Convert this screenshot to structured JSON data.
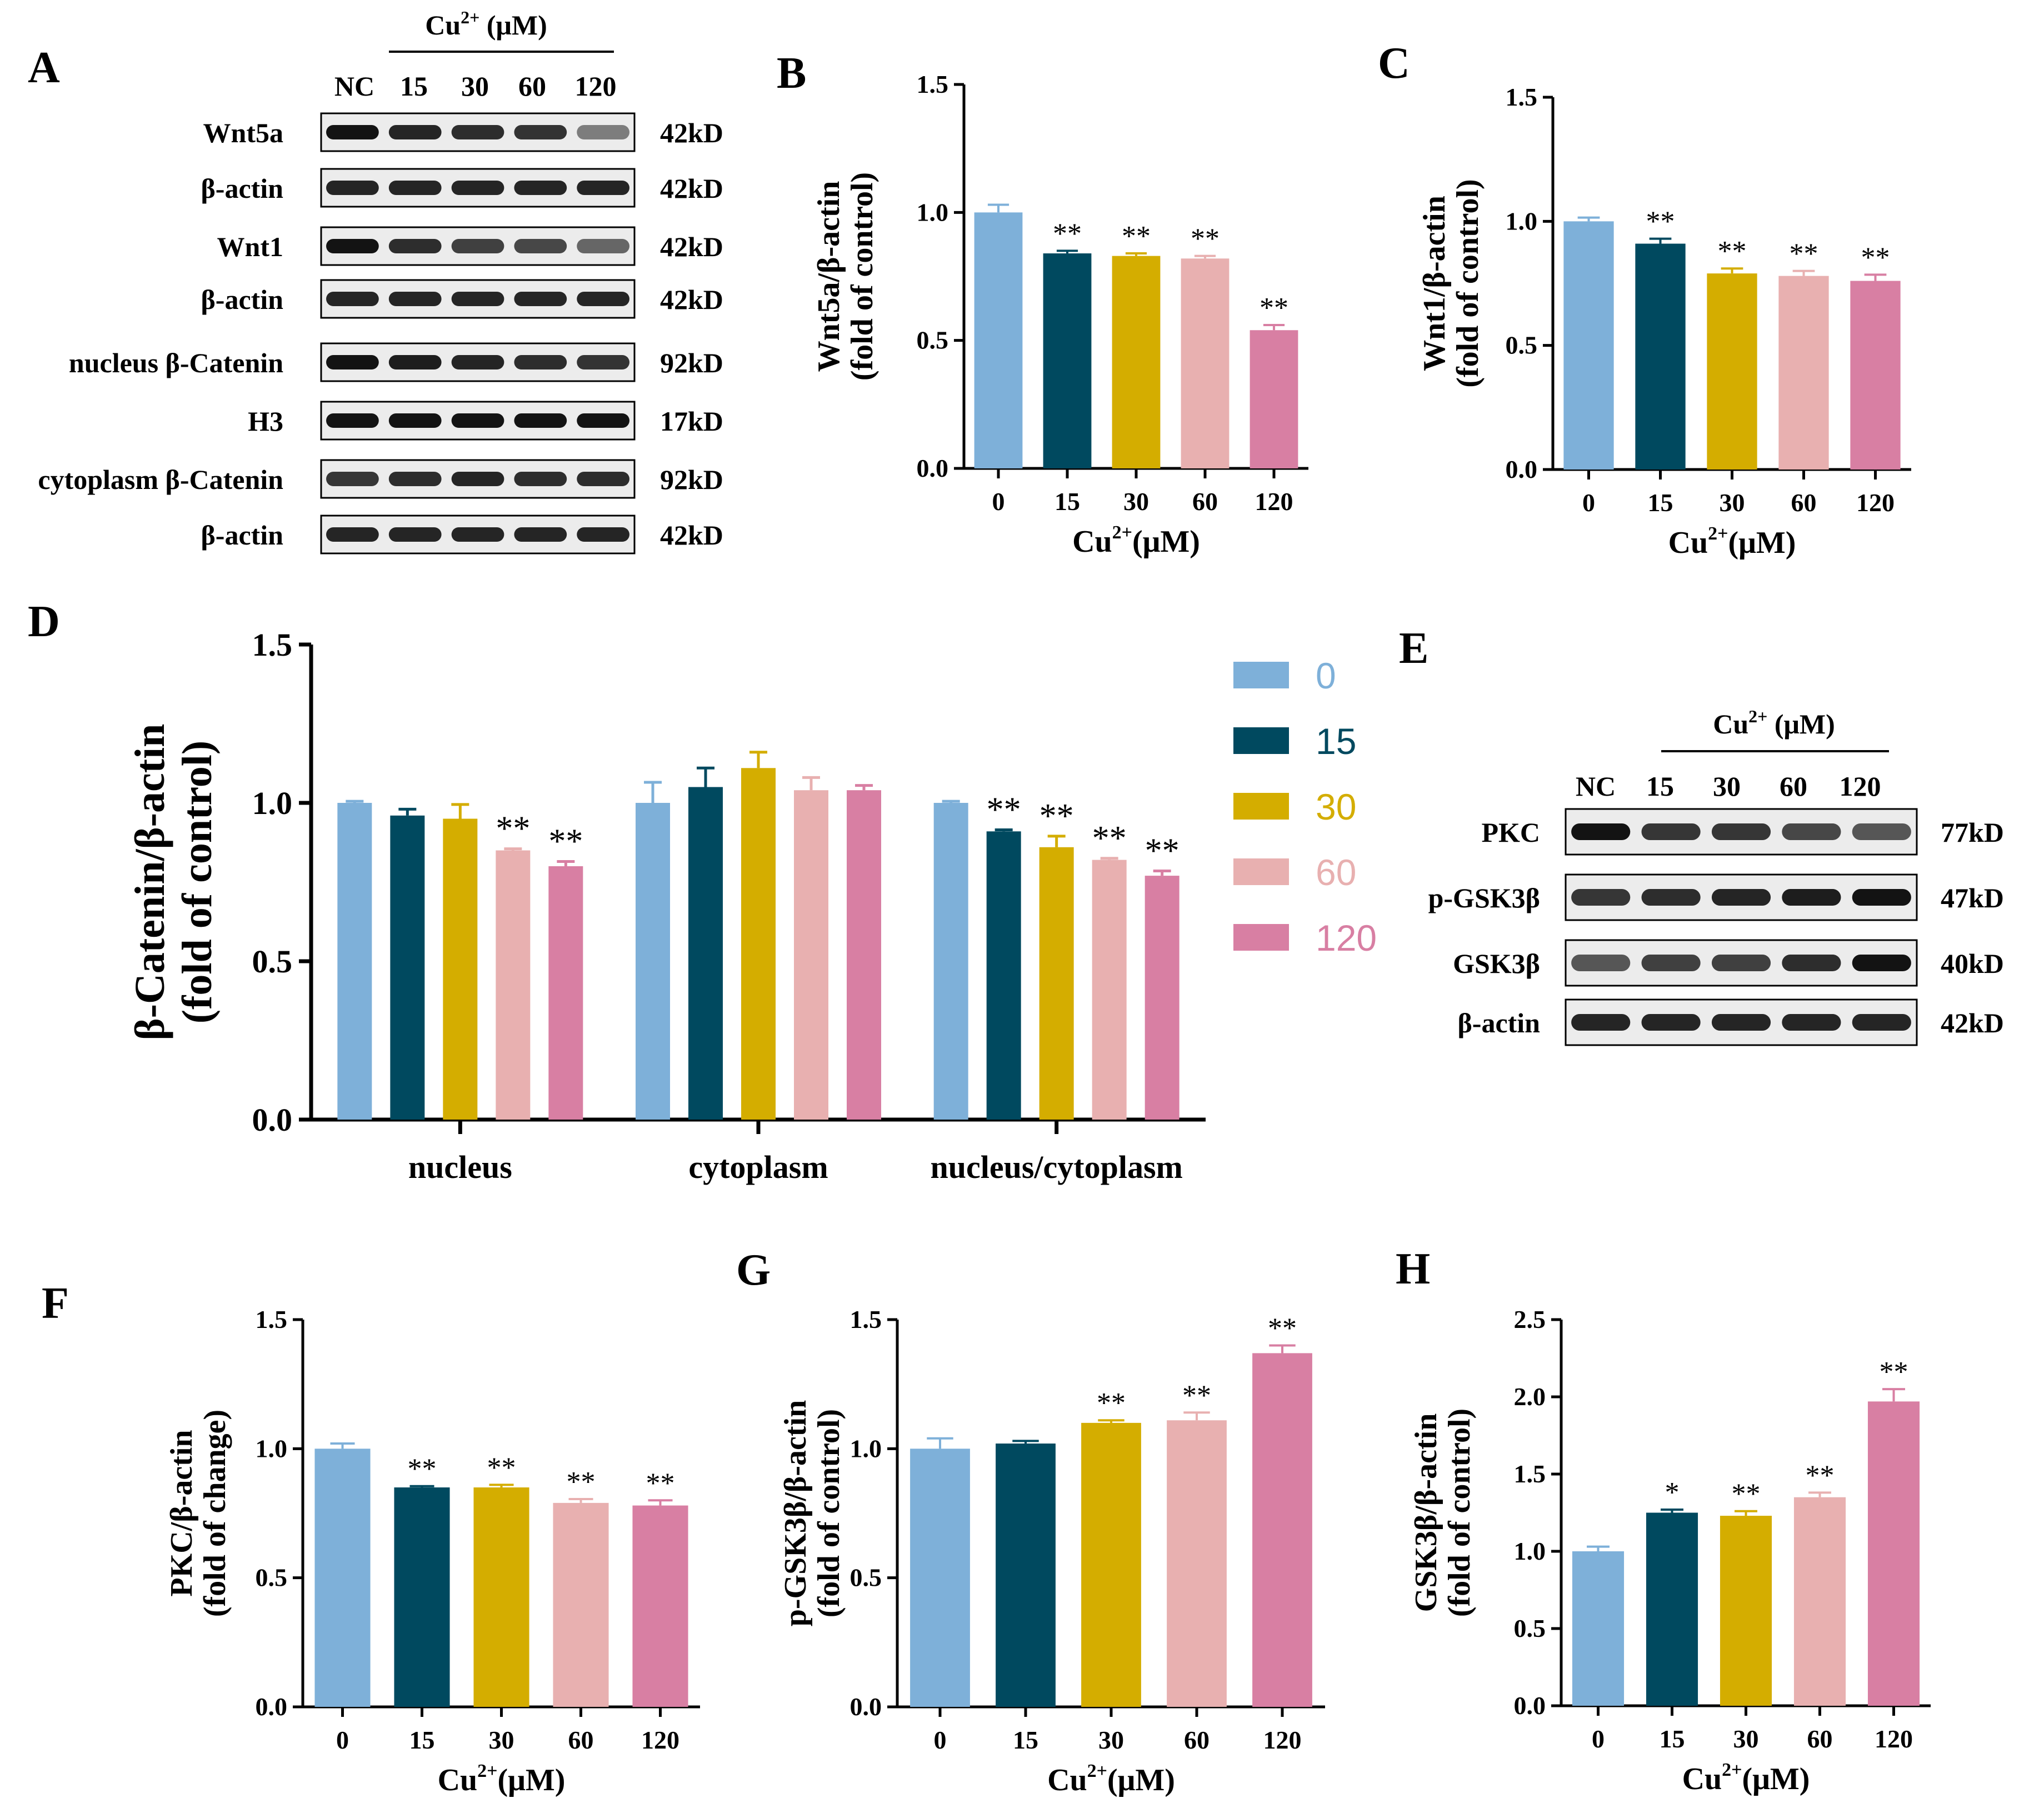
{
  "figure": {
    "conc_unit_header": "Cu²⁺ (μM)",
    "lane_labels": [
      "NC",
      "15",
      "30",
      "60",
      "120"
    ],
    "x_tick_labels": [
      "0",
      "15",
      "30",
      "60",
      "120"
    ]
  },
  "colors": [
    "#7EB0D9",
    "#00495F",
    "#D4AD00",
    "#E8B0B0",
    "#D87FA3"
  ],
  "blots": {
    "A": {
      "letter": "A",
      "rows": [
        {
          "protein": "Wnt5a",
          "size": "42kD",
          "intensity": [
            0.95,
            0.9,
            0.88,
            0.86,
            0.62
          ]
        },
        {
          "protein": "β-actin",
          "size": "42kD",
          "intensity": [
            0.9,
            0.9,
            0.9,
            0.9,
            0.9
          ]
        },
        {
          "protein": "Wnt1",
          "size": "42kD",
          "intensity": [
            0.95,
            0.88,
            0.82,
            0.8,
            0.7
          ]
        },
        {
          "protein": "β-actin",
          "size": "42kD",
          "intensity": [
            0.9,
            0.9,
            0.9,
            0.9,
            0.9
          ]
        },
        {
          "protein": "nucleus β-Catenin",
          "size": "92kD",
          "intensity": [
            0.95,
            0.92,
            0.9,
            0.88,
            0.86
          ]
        },
        {
          "protein": "H3",
          "size": "17kD",
          "intensity": [
            0.95,
            0.95,
            0.95,
            0.95,
            0.95
          ]
        },
        {
          "protein": "cytoplasm β-Catenin",
          "size": "92kD",
          "intensity": [
            0.85,
            0.88,
            0.9,
            0.88,
            0.88
          ]
        },
        {
          "protein": "β-actin",
          "size": "42kD",
          "intensity": [
            0.9,
            0.9,
            0.9,
            0.9,
            0.9
          ]
        }
      ]
    },
    "E": {
      "letter": "E",
      "rows": [
        {
          "protein": "PKC",
          "size": "77kD",
          "intensity": [
            0.95,
            0.85,
            0.85,
            0.8,
            0.75
          ]
        },
        {
          "protein": "p-GSK3β",
          "size": "47kD",
          "intensity": [
            0.85,
            0.88,
            0.9,
            0.92,
            0.95
          ]
        },
        {
          "protein": "GSK3β",
          "size": "40kD",
          "intensity": [
            0.75,
            0.82,
            0.82,
            0.88,
            0.95
          ]
        },
        {
          "protein": "β-actin",
          "size": "42kD",
          "intensity": [
            0.9,
            0.9,
            0.9,
            0.9,
            0.9
          ]
        }
      ]
    }
  },
  "chart_data": [
    {
      "id": "B",
      "letter": "B",
      "type": "bar",
      "title": "",
      "ylabel_lines": [
        "Wnt5a/β-actin",
        "(fold of control)"
      ],
      "xlabel": "Cu2+(μM)",
      "xlabel_parts": {
        "base": "Cu",
        "sup": "2+",
        "rest": "(μM)"
      },
      "categories": [
        "0",
        "15",
        "30",
        "60",
        "120"
      ],
      "values": [
        1.0,
        0.84,
        0.83,
        0.82,
        0.54
      ],
      "errors": [
        0.03,
        0.01,
        0.01,
        0.01,
        0.02
      ],
      "significance": [
        "",
        "**",
        "**",
        "**",
        "**"
      ],
      "ylim": [
        0,
        1.5
      ],
      "yticks": [
        "0.0",
        "0.5",
        "1.0",
        "1.5"
      ]
    },
    {
      "id": "C",
      "letter": "C",
      "type": "bar",
      "title": "",
      "ylabel_lines": [
        "Wnt1/β-actin",
        "(fold of control)"
      ],
      "xlabel": "Cu2+(μM)",
      "xlabel_parts": {
        "base": "Cu",
        "sup": "2+",
        "rest": "(μM)"
      },
      "categories": [
        "0",
        "15",
        "30",
        "60",
        "120"
      ],
      "values": [
        1.0,
        0.91,
        0.79,
        0.78,
        0.76
      ],
      "errors": [
        0.015,
        0.02,
        0.02,
        0.02,
        0.025
      ],
      "significance": [
        "",
        "**",
        "**",
        "**",
        "**"
      ],
      "ylim": [
        0,
        1.5
      ],
      "yticks": [
        "0.0",
        "0.5",
        "1.0",
        "1.5"
      ]
    },
    {
      "id": "D",
      "letter": "D",
      "type": "bar",
      "title": "",
      "ylabel_lines": [
        "β-Catenin/β-actin",
        "(fold of control)"
      ],
      "groups": [
        "nucleus",
        "cytoplasm",
        "nucleus/cytoplasm"
      ],
      "legend_position": "right",
      "series": [
        {
          "name": "0",
          "values": [
            1.0,
            1.0,
            1.0
          ],
          "errors": [
            0.005,
            0.065,
            0.005
          ],
          "significance": [
            "",
            "",
            ""
          ]
        },
        {
          "name": "15",
          "values": [
            0.96,
            1.05,
            0.91
          ],
          "errors": [
            0.02,
            0.06,
            0.005
          ],
          "significance": [
            "",
            "",
            "**"
          ]
        },
        {
          "name": "30",
          "values": [
            0.95,
            1.11,
            0.86
          ],
          "errors": [
            0.045,
            0.05,
            0.035
          ],
          "significance": [
            "",
            "",
            "**"
          ]
        },
        {
          "name": "60",
          "values": [
            0.85,
            1.04,
            0.82
          ],
          "errors": [
            0.005,
            0.04,
            0.005
          ],
          "significance": [
            "**",
            "",
            "**"
          ]
        },
        {
          "name": "120",
          "values": [
            0.8,
            1.04,
            0.77
          ],
          "errors": [
            0.015,
            0.015,
            0.015
          ],
          "significance": [
            "**",
            "",
            "**"
          ]
        }
      ],
      "ylim": [
        0,
        1.5
      ],
      "yticks": [
        "0.0",
        "0.5",
        "1.0",
        "1.5"
      ]
    },
    {
      "id": "F",
      "letter": "F",
      "type": "bar",
      "title": "",
      "ylabel_lines": [
        "PKC/β-actin",
        "(fold of change)"
      ],
      "xlabel": "Cu2+(μM)",
      "xlabel_parts": {
        "base": "Cu",
        "sup": "2+",
        "rest": "(μM)"
      },
      "categories": [
        "0",
        "15",
        "30",
        "60",
        "120"
      ],
      "values": [
        1.0,
        0.85,
        0.85,
        0.79,
        0.78
      ],
      "errors": [
        0.02,
        0.005,
        0.01,
        0.015,
        0.02
      ],
      "significance": [
        "",
        "**",
        "**",
        "**",
        "**"
      ],
      "ylim": [
        0,
        1.5
      ],
      "yticks": [
        "0.0",
        "0.5",
        "1.0",
        "1.5"
      ]
    },
    {
      "id": "G",
      "letter": "G",
      "type": "bar",
      "title": "",
      "ylabel_lines": [
        "p-GSK3β/β-actin",
        "(fold of control)"
      ],
      "xlabel": "Cu2+(μM)",
      "xlabel_parts": {
        "base": "Cu",
        "sup": "2+",
        "rest": "(μM)"
      },
      "categories": [
        "0",
        "15",
        "30",
        "60",
        "120"
      ],
      "values": [
        1.0,
        1.02,
        1.1,
        1.11,
        1.37
      ],
      "errors": [
        0.04,
        0.01,
        0.01,
        0.03,
        0.03
      ],
      "significance": [
        "",
        "",
        "**",
        "**",
        "**"
      ],
      "ylim": [
        0,
        1.5
      ],
      "yticks": [
        "0.0",
        "0.5",
        "1.0",
        "1.5"
      ]
    },
    {
      "id": "H",
      "letter": "H",
      "type": "bar",
      "title": "",
      "ylabel_lines": [
        "GSK3β/β-actin",
        "(fold of control)"
      ],
      "xlabel": "Cu2+(μM)",
      "xlabel_parts": {
        "base": "Cu",
        "sup": "2+",
        "rest": "(μM)"
      },
      "categories": [
        "0",
        "15",
        "30",
        "60",
        "120"
      ],
      "values": [
        1.0,
        1.25,
        1.23,
        1.35,
        1.97
      ],
      "errors": [
        0.03,
        0.02,
        0.03,
        0.03,
        0.08
      ],
      "significance": [
        "",
        "*",
        "**",
        "**",
        "**"
      ],
      "ylim": [
        0,
        2.5
      ],
      "yticks": [
        "0.0",
        "0.5",
        "1.0",
        "1.5",
        "2.0",
        "2.5"
      ]
    }
  ]
}
